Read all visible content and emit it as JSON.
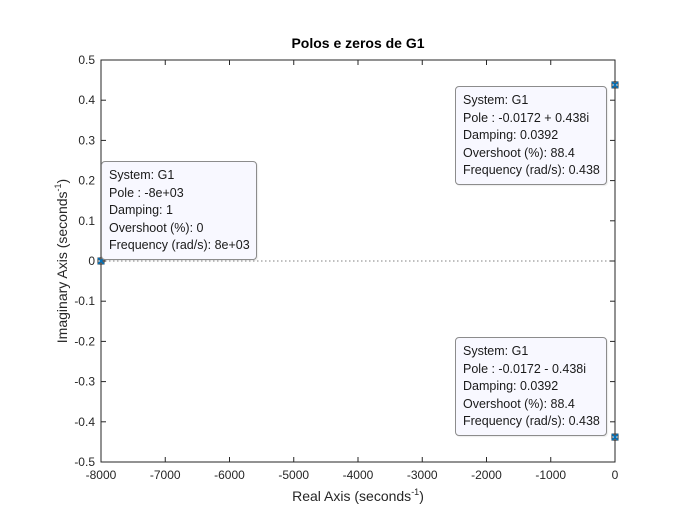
{
  "chart_data": {
    "type": "scatter",
    "title": "Polos e zeros de G1",
    "xlabel": "Real Axis (seconds",
    "ylabel": "Imaginary Axis (seconds",
    "label_exponent": "-1",
    "xlim": [
      -8000,
      0
    ],
    "ylim": [
      -0.5,
      0.5
    ],
    "xticks": [
      -8000,
      -7000,
      -6000,
      -5000,
      -4000,
      -3000,
      -2000,
      -1000,
      0
    ],
    "yticks": [
      -0.5,
      -0.4,
      -0.3,
      -0.2,
      -0.1,
      0,
      0.1,
      0.2,
      0.3,
      0.4,
      0.5
    ],
    "xtick_labels": [
      "-8000",
      "-7000",
      "-6000",
      "-5000",
      "-4000",
      "-3000",
      "-2000",
      "-1000",
      "0"
    ],
    "ytick_labels": [
      "-0.5",
      "-0.4",
      "-0.3",
      "-0.2",
      "-0.1",
      "0",
      "0.1",
      "0.2",
      "0.3",
      "0.4",
      "0.5"
    ],
    "marker_color": "#0072bd",
    "points": [
      {
        "x": -8000,
        "y": 0
      },
      {
        "x": -0.0172,
        "y": 0.438
      },
      {
        "x": -0.0172,
        "y": -0.438
      }
    ],
    "datatips": [
      {
        "system": "System: G1",
        "pole": "Pole : -8e+03",
        "damping": "Damping: 1",
        "overshoot": "Overshoot (%): 0",
        "frequency": "Frequency (rad/s): 8e+03"
      },
      {
        "system": "System: G1",
        "pole": "Pole : -0.0172 + 0.438i",
        "damping": "Damping: 0.0392",
        "overshoot": "Overshoot (%): 88.4",
        "frequency": "Frequency (rad/s): 0.438"
      },
      {
        "system": "System: G1",
        "pole": "Pole : -0.0172 - 0.438i",
        "damping": "Damping: 0.0392",
        "overshoot": "Overshoot (%): 88.4",
        "frequency": "Frequency (rad/s): 0.438"
      }
    ]
  }
}
